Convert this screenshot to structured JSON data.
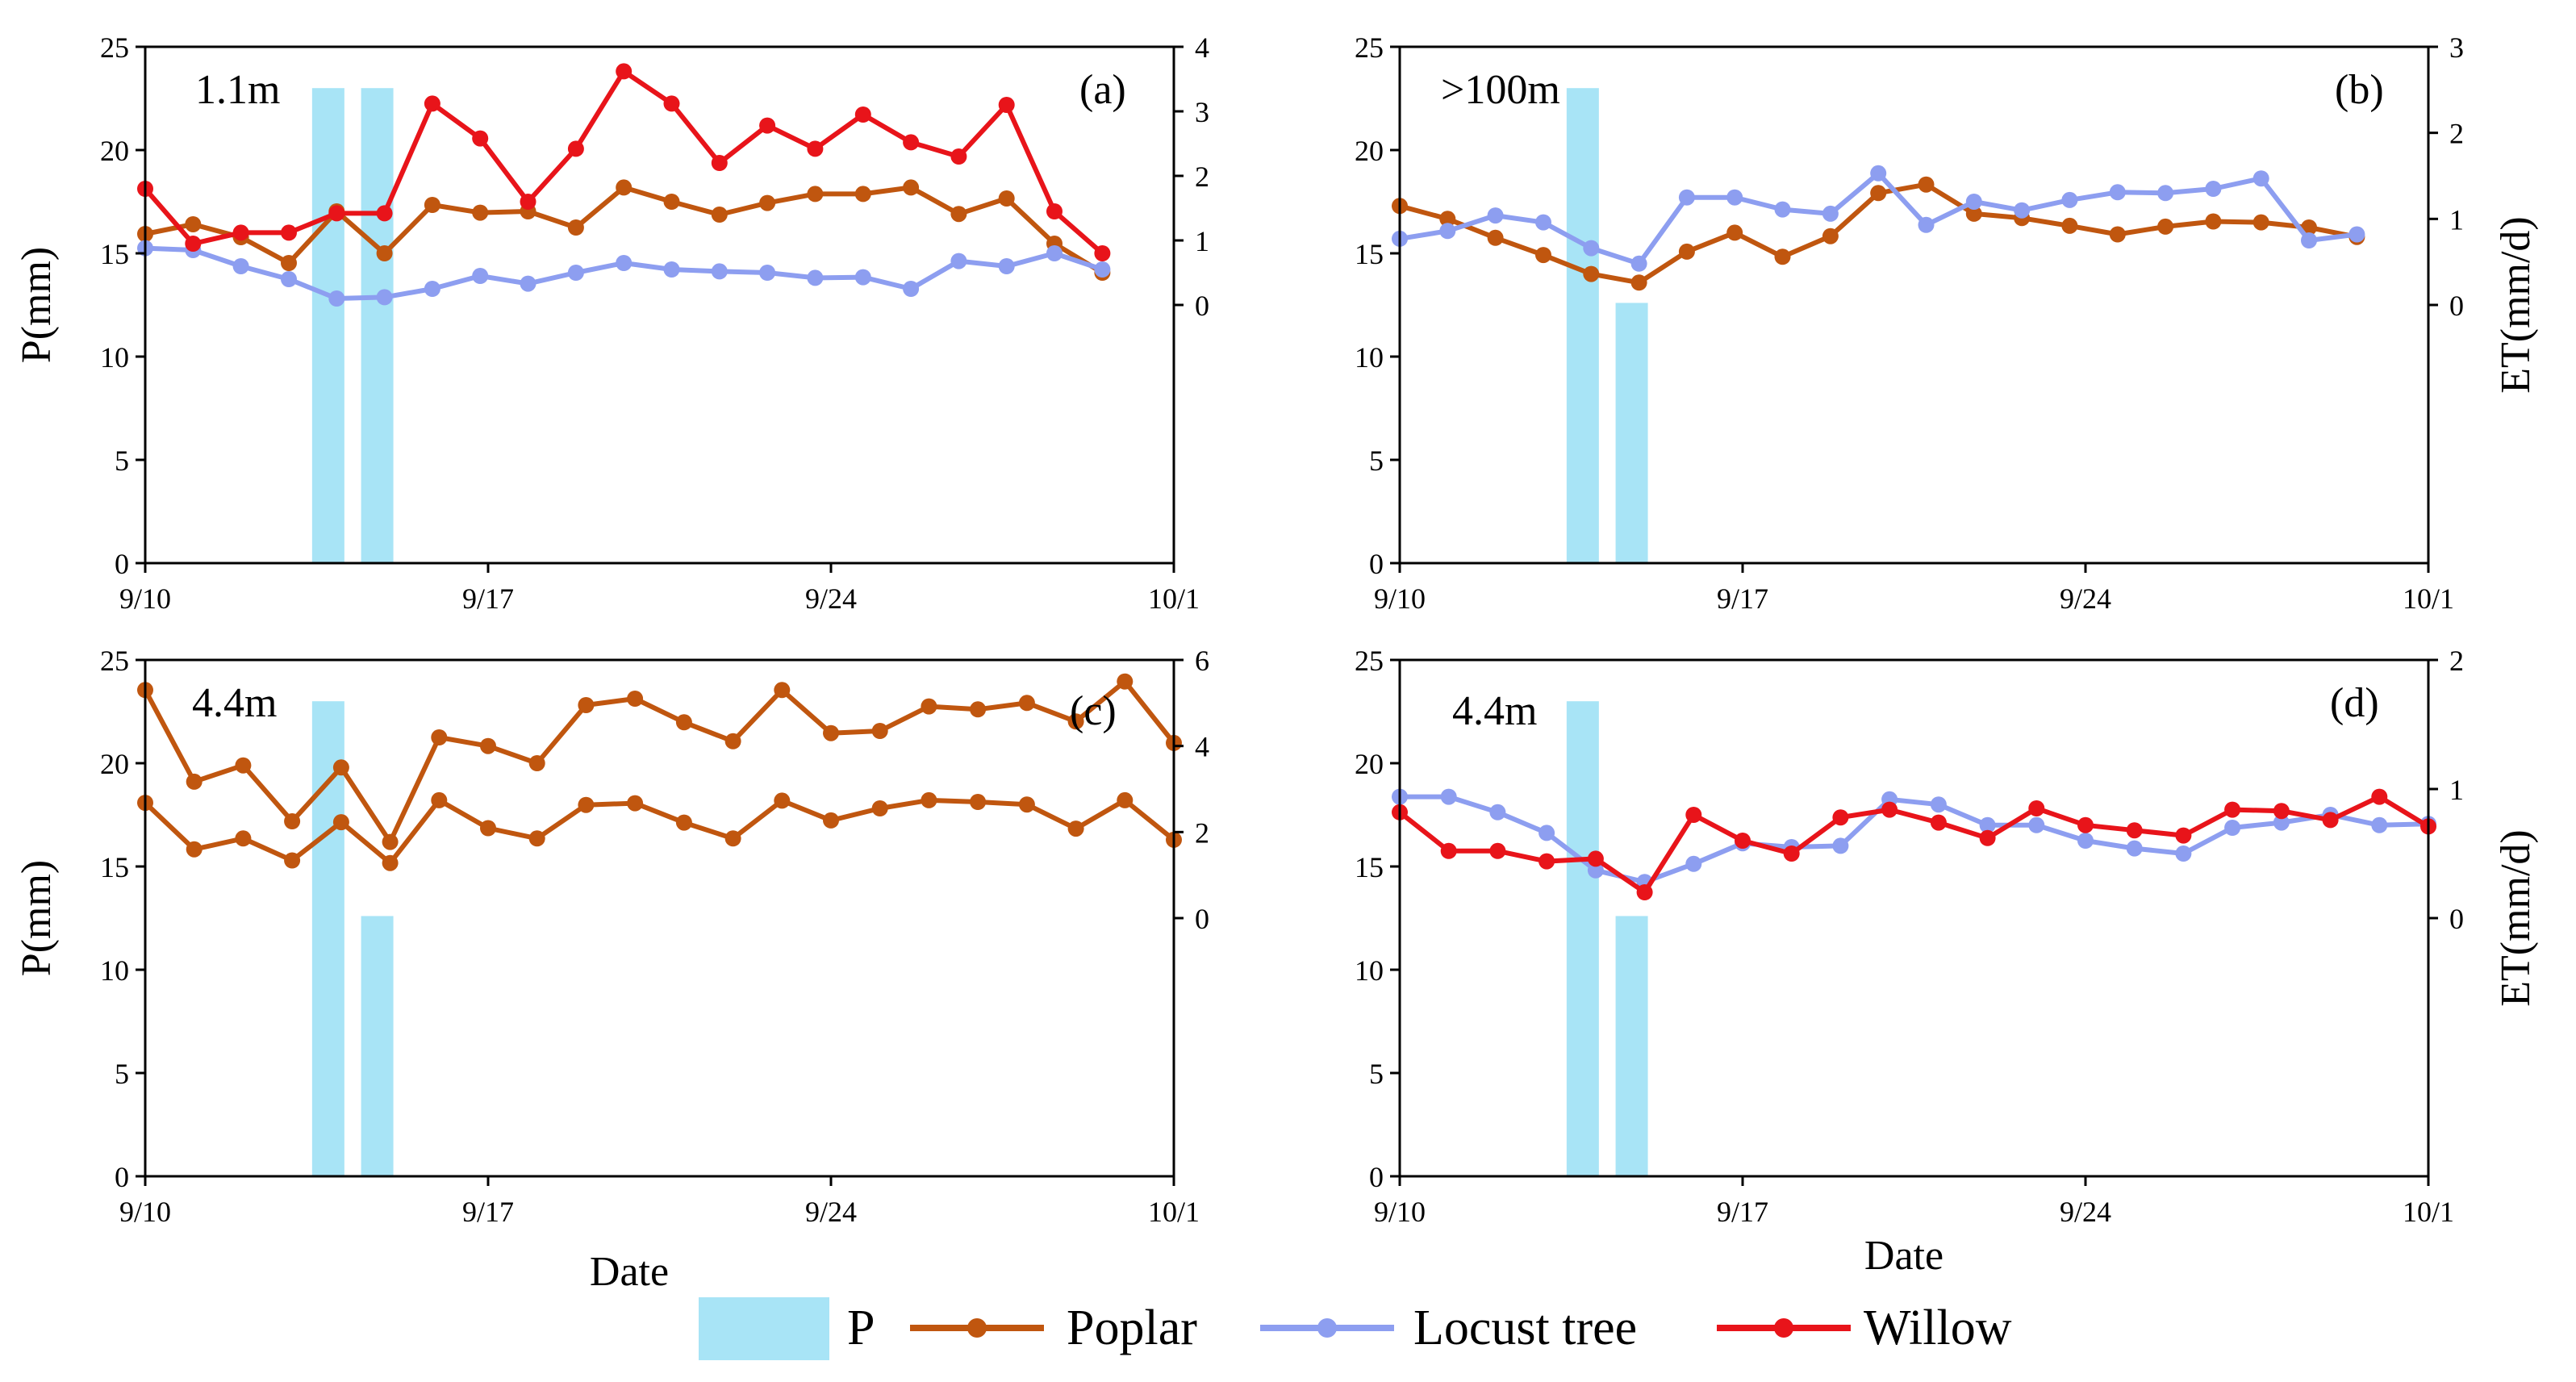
{
  "legend": {
    "p": "P",
    "poplar": "Poplar",
    "locust": "Locust tree",
    "willow": "Willow"
  },
  "colors": {
    "p": "#a8e4f6",
    "poplar": "#c0560f",
    "locust": "#8d9ef0",
    "willow": "#e8141a"
  },
  "chart_data": [
    {
      "type": "line",
      "panel": "(a)",
      "annotation": "1.1m",
      "ylabel_left": "P(mm)",
      "ylabel_right": "",
      "xlabel": "",
      "x_ticks": [
        "9/10",
        "9/17",
        "9/24",
        "10/1"
      ],
      "ylim_left": [
        0,
        25
      ],
      "y_ticks_left": [
        "0",
        "5",
        "10",
        "15",
        "20",
        "25"
      ],
      "ylim_right": [
        -4,
        4
      ],
      "y_ticks_right": [
        "0",
        "1",
        "2",
        "3",
        "4"
      ],
      "precipitation": [
        {
          "day": 14,
          "value": 23
        },
        {
          "day": 15,
          "value": 23
        }
      ],
      "series": [
        {
          "name": "Poplar",
          "key": "poplar",
          "values": [
            1.1,
            1.25,
            1.05,
            0.65,
            1.45,
            0.8,
            1.55,
            1.43,
            1.45,
            1.2,
            1.82,
            1.6,
            1.4,
            1.58,
            1.72,
            1.72,
            1.82,
            1.41,
            1.65,
            0.95,
            0.5
          ]
        },
        {
          "name": "Locust tree",
          "key": "locust",
          "values": [
            0.88,
            0.85,
            0.6,
            0.4,
            0.1,
            0.12,
            0.25,
            0.45,
            0.33,
            0.5,
            0.65,
            0.55,
            0.52,
            0.5,
            0.42,
            0.43,
            0.25,
            0.68,
            0.6,
            0.8,
            0.55
          ]
        },
        {
          "name": "Willow",
          "key": "willow",
          "values": [
            1.8,
            0.95,
            1.12,
            1.12,
            1.42,
            1.42,
            3.12,
            2.58,
            1.6,
            2.42,
            3.62,
            3.12,
            2.2,
            2.78,
            2.42,
            2.95,
            2.52,
            2.3,
            3.1,
            1.45,
            0.8
          ]
        }
      ]
    },
    {
      "type": "line",
      "panel": "(b)",
      "annotation": ">100m",
      "ylabel_left": "",
      "ylabel_right": "ET(mm/d)",
      "xlabel": "",
      "x_ticks": [
        "9/10",
        "9/17",
        "9/24",
        "10/1"
      ],
      "ylim_left": [
        0,
        25
      ],
      "y_ticks_left": [
        "0",
        "5",
        "10",
        "15",
        "20",
        "25"
      ],
      "ylim_right": [
        -3,
        3
      ],
      "y_ticks_right": [
        "0",
        "1",
        "2",
        "3"
      ],
      "precipitation": [
        {
          "day": 14,
          "value": 23
        },
        {
          "day": 15,
          "value": 12.6
        }
      ],
      "series": [
        {
          "name": "Poplar",
          "key": "poplar",
          "values": [
            1.15,
            1.0,
            0.78,
            0.58,
            0.36,
            0.26,
            0.62,
            0.84,
            0.56,
            0.8,
            1.3,
            1.4,
            1.06,
            1.01,
            0.92,
            0.82,
            0.91,
            0.97,
            0.96,
            0.9,
            0.79
          ]
        },
        {
          "name": "Locust tree",
          "key": "locust",
          "values": [
            0.77,
            0.86,
            1.04,
            0.96,
            0.66,
            0.48,
            1.25,
            1.25,
            1.11,
            1.06,
            1.53,
            0.93,
            1.2,
            1.1,
            1.22,
            1.31,
            1.3,
            1.35,
            1.47,
            0.75,
            0.82
          ]
        }
      ]
    },
    {
      "type": "line",
      "panel": "(c)",
      "annotation": "4.4m",
      "ylabel_left": "P(mm)",
      "ylabel_right": "",
      "xlabel": "Date",
      "x_ticks": [
        "9/10",
        "9/17",
        "9/24",
        "10/1"
      ],
      "ylim_left": [
        0,
        25
      ],
      "y_ticks_left": [
        "0",
        "5",
        "10",
        "15",
        "20",
        "25"
      ],
      "ylim_right": [
        -6,
        6
      ],
      "y_ticks_right": [
        "0",
        "2",
        "4",
        "6"
      ],
      "precipitation": [
        {
          "day": 14,
          "value": 23
        },
        {
          "day": 15,
          "value": 12.6
        }
      ],
      "series": [
        {
          "name": "Poplar",
          "key": "poplar",
          "values": [
            5.3,
            3.17,
            3.55,
            2.25,
            3.5,
            1.77,
            4.2,
            4.0,
            3.6,
            4.95,
            5.1,
            4.55,
            4.11,
            5.3,
            4.3,
            4.35,
            4.92,
            4.85,
            5.0,
            4.57,
            5.5,
            4.07
          ]
        },
        {
          "name": "Poplar",
          "key": "poplar",
          "values": [
            2.68,
            1.6,
            1.85,
            1.34,
            2.23,
            1.28,
            2.74,
            2.09,
            1.85,
            2.63,
            2.67,
            2.22,
            1.85,
            2.73,
            2.27,
            2.55,
            2.74,
            2.7,
            2.64,
            2.08,
            2.74,
            1.82
          ]
        }
      ]
    },
    {
      "type": "line",
      "panel": "(d)",
      "annotation": "4.4m",
      "ylabel_left": "",
      "ylabel_right": "ET(mm/d)",
      "xlabel": "Date",
      "x_ticks": [
        "9/10",
        "9/17",
        "9/24",
        "10/1"
      ],
      "ylim_left": [
        0,
        25
      ],
      "y_ticks_left": [
        "0",
        "5",
        "10",
        "15",
        "20",
        "25"
      ],
      "ylim_right": [
        -2,
        2
      ],
      "y_ticks_right": [
        "0",
        "1",
        "2"
      ],
      "precipitation": [
        {
          "day": 14,
          "value": 23
        },
        {
          "day": 15,
          "value": 12.6
        }
      ],
      "series": [
        {
          "name": "Locust tree",
          "key": "locust",
          "values": [
            0.94,
            0.94,
            0.82,
            0.66,
            0.37,
            0.28,
            0.42,
            0.58,
            0.55,
            0.56,
            0.92,
            0.88,
            0.72,
            0.72,
            0.6,
            0.54,
            0.5,
            0.7,
            0.74,
            0.8,
            0.72,
            0.73
          ]
        },
        {
          "name": "Willow",
          "key": "willow",
          "values": [
            0.82,
            0.52,
            0.52,
            0.44,
            0.46,
            0.2,
            0.8,
            0.6,
            0.5,
            0.78,
            0.84,
            0.74,
            0.62,
            0.85,
            0.72,
            0.68,
            0.64,
            0.84,
            0.83,
            0.76,
            0.94,
            0.71
          ]
        }
      ]
    }
  ]
}
